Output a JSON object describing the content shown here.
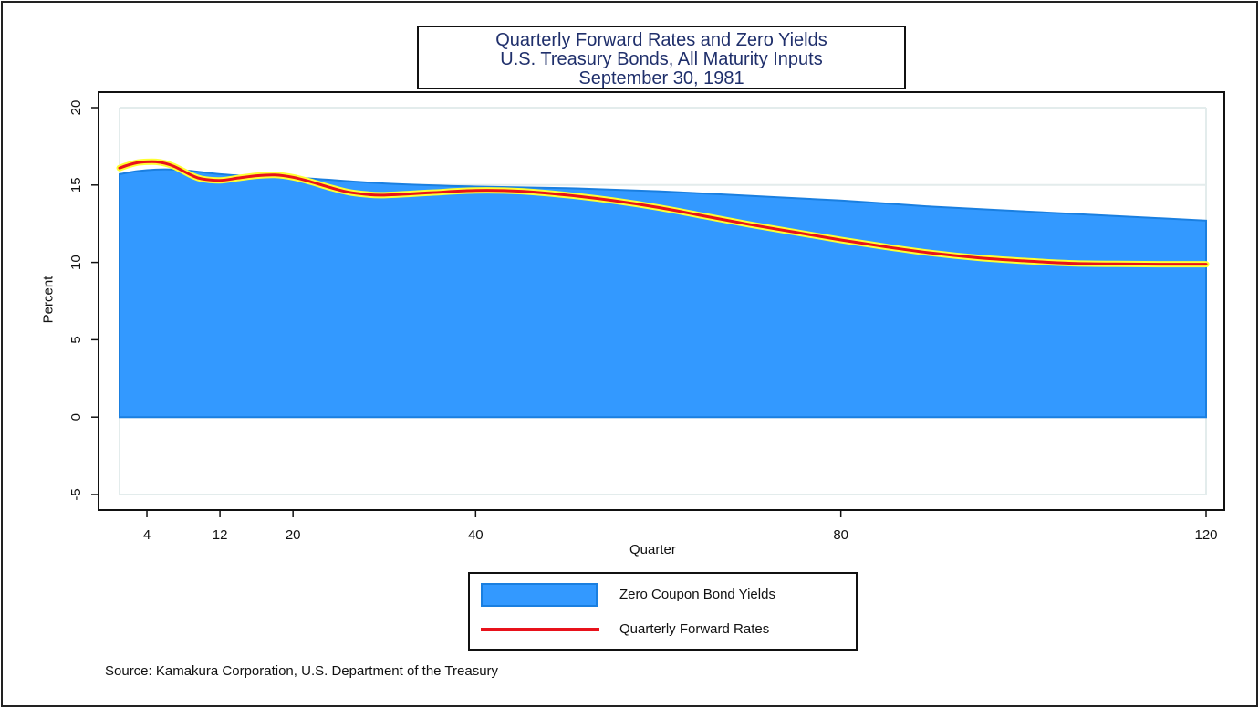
{
  "chart_data": {
    "type": "area",
    "title": [
      "Quarterly Forward Rates and Zero Yields",
      "U.S. Treasury Bonds, All Maturity Inputs",
      "September 30, 1981"
    ],
    "xlabel": "Quarter",
    "ylabel": "Percent",
    "xlim": [
      1,
      120
    ],
    "ylim": [
      -5,
      20
    ],
    "xticks": [
      4,
      12,
      20,
      40,
      80,
      120
    ],
    "yticks": [
      -5,
      0,
      5,
      10,
      15,
      20
    ],
    "grid": true,
    "legend_position": "bottom",
    "series": [
      {
        "name": "Zero Coupon Bond Yields",
        "type": "area",
        "color": "#3399ff",
        "x": [
          1,
          3,
          5,
          7,
          9,
          12,
          16,
          20,
          30,
          40,
          50,
          60,
          70,
          80,
          90,
          100,
          110,
          120
        ],
        "values": [
          15.7,
          15.9,
          16.0,
          16.0,
          15.9,
          15.7,
          15.55,
          15.5,
          15.1,
          14.9,
          14.8,
          14.6,
          14.3,
          14.0,
          13.6,
          13.3,
          13.0,
          12.7
        ]
      },
      {
        "name": "Quarterly Forward Rates",
        "type": "line",
        "color": "#e8121b",
        "outline": "#ffff33",
        "x": [
          1,
          2,
          3,
          4,
          5,
          6,
          7,
          8,
          9,
          10,
          12,
          14,
          16,
          18,
          20,
          22,
          24,
          26,
          28,
          30,
          35,
          40,
          45,
          50,
          55,
          60,
          65,
          70,
          75,
          80,
          85,
          90,
          95,
          100,
          105,
          110,
          115,
          120
        ],
        "values": [
          16.1,
          16.3,
          16.45,
          16.5,
          16.5,
          16.4,
          16.2,
          15.9,
          15.6,
          15.4,
          15.3,
          15.45,
          15.6,
          15.65,
          15.5,
          15.2,
          14.85,
          14.55,
          14.4,
          14.35,
          14.5,
          14.65,
          14.6,
          14.35,
          14.0,
          13.55,
          13.0,
          12.45,
          11.95,
          11.45,
          11.0,
          10.6,
          10.3,
          10.1,
          9.95,
          9.9,
          9.88,
          9.88
        ]
      }
    ]
  },
  "legend": {
    "items": [
      {
        "label": "Zero Coupon Bond Yields"
      },
      {
        "label": "Quarterly Forward Rates"
      }
    ]
  },
  "source": "Source: Kamakura Corporation, U.S. Department of the Treasury"
}
